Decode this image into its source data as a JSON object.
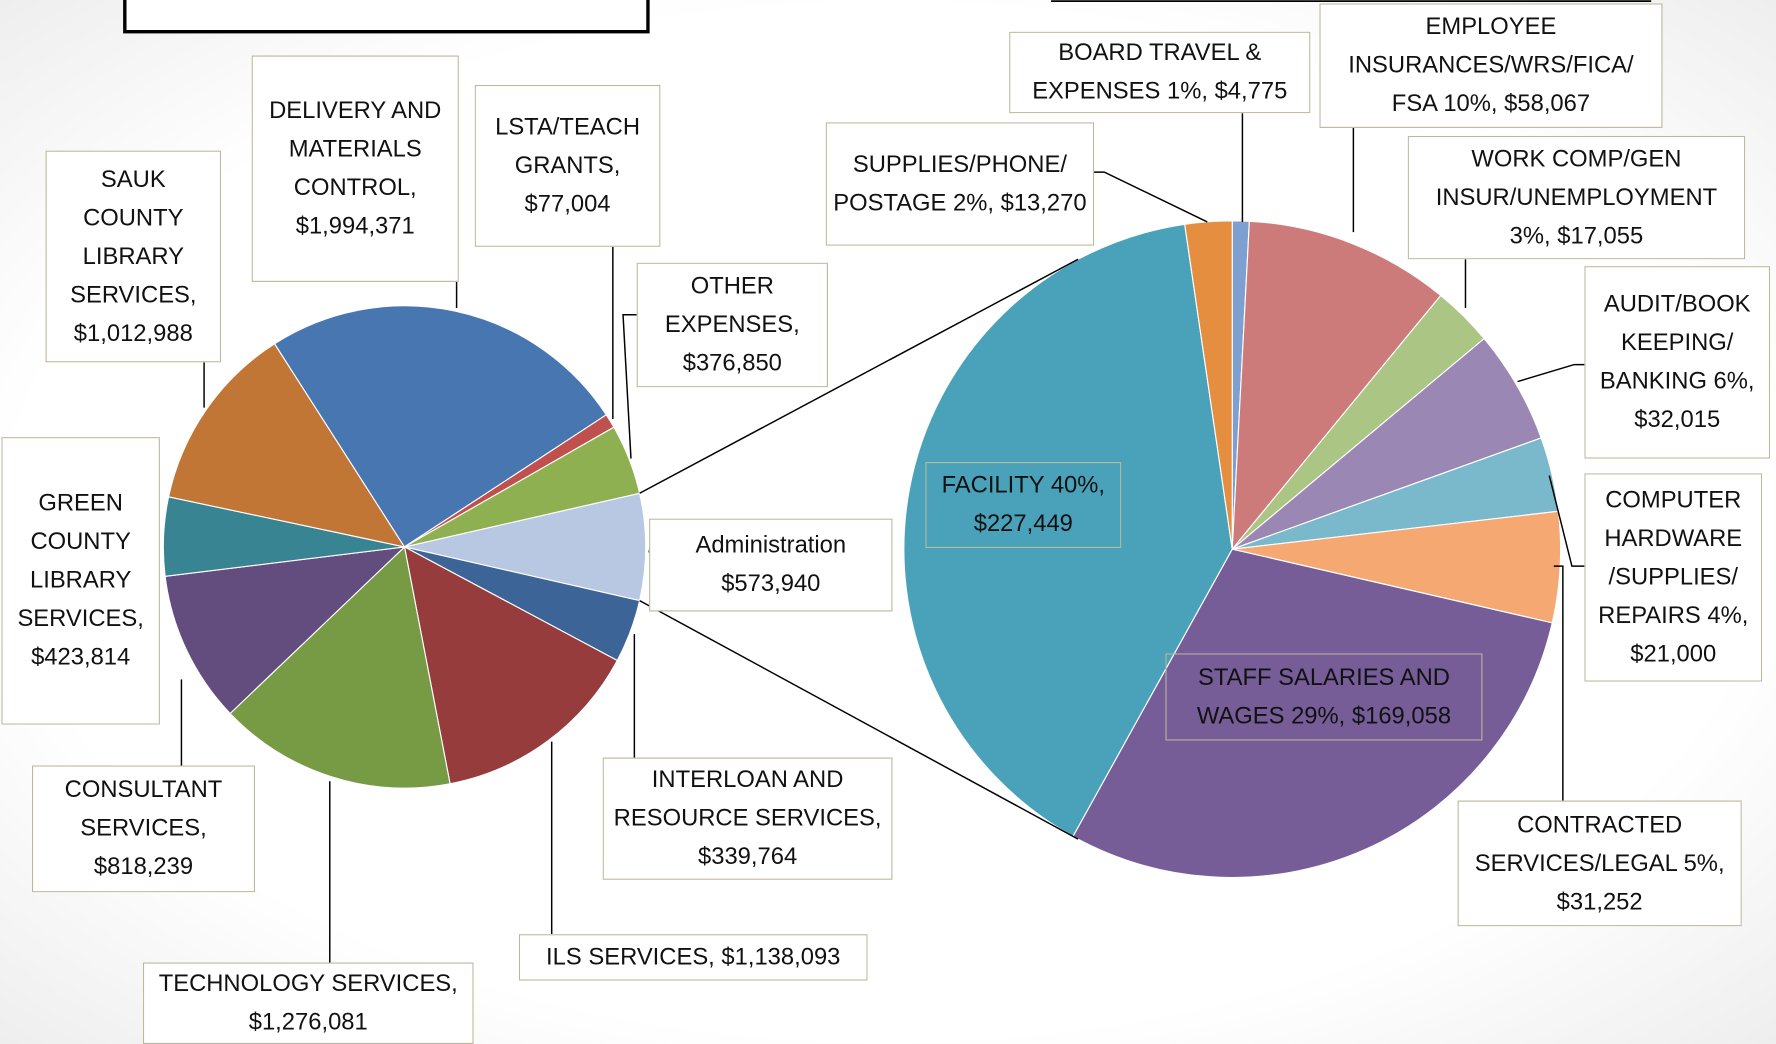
{
  "chart_data": [
    {
      "type": "pie",
      "values": [
        573940,
        339764,
        1138093,
        1276081,
        818239,
        423814,
        1012988,
        1994371,
        77004,
        376850
      ],
      "value_labels": [
        "Administration $573,940",
        "INTERLOAN AND RESOURCE SERVICES, $339,764",
        "ILS SERVICES,  $1,138,093",
        "TECHNOLOGY SERVICES, $1,276,081",
        "CONSULTANT SERVICES, $818,239",
        "GREEN COUNTY LIBRARY SERVICES, $423,814",
        "SAUK COUNTY LIBRARY SERVICES, $1,012,988",
        "DELIVERY AND MATERIALS CONTROL, $1,994,371",
        "LSTA/TEACH GRANTS, $77,004",
        "OTHER EXPENSES, $376,850"
      ],
      "colors": [
        "#b9c8e2",
        "#3d6496",
        "#963c3c",
        "#779a44",
        "#624d7e",
        "#388493",
        "#c27635",
        "#4876b0",
        "#c0504d",
        "#8fb050"
      ]
    },
    {
      "type": "pie",
      "values": [
        4775,
        58067,
        17055,
        32015,
        21000,
        31252,
        169058,
        227449,
        13270
      ],
      "value_labels": [
        "BOARD TRAVEL & EXPENSES 1%,  $4,775",
        "EMPLOYEE INSURANCES/WRS/FICA/ FSA 10%,  $58,067",
        "WORK COMP/GEN INSUR/UNEMPLOYMENT 3%,  $17,055",
        "AUDIT/BOOK KEEPING/ BANKING 6%,  $32,015",
        "COMPUTER HARDWARE /SUPPLIES/ REPAIRS 4%, $21,000",
        "CONTRACTED SERVICES/LEGAL 5%, $31,252",
        "STAFF SALARIES AND WAGES 29%,  $169,058",
        "FACILITY 40%, $227,449",
        "SUPPLIES/PHONE/ POSTAGE 2%, $13,270"
      ],
      "colors": [
        "#7ea0d0",
        "#cd7b7a",
        "#abc584",
        "#9b87b3",
        "#7ab8cc",
        "#f6a872",
        "#765d98",
        "#4aa2ba",
        "#e58e3f"
      ]
    }
  ]
}
